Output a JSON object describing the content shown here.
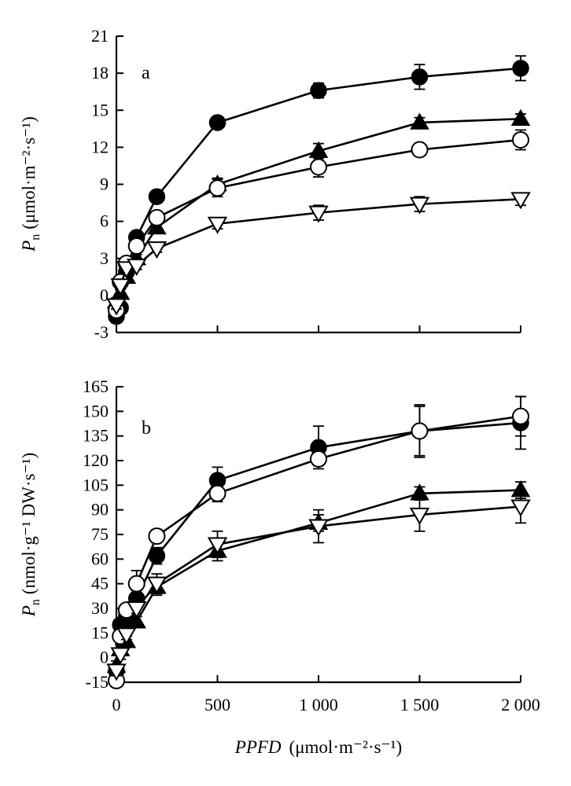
{
  "chart_data": [
    {
      "type": "line",
      "panel_label": "a",
      "ylabel_symbol": "P",
      "ylabel_subscript": "n",
      "ylabel_unit": "(μmol·m⁻²·s⁻¹)",
      "xlabel": "",
      "x": [
        0,
        20,
        50,
        100,
        200,
        500,
        1000,
        1500,
        2000
      ],
      "xlim": [
        0,
        2000
      ],
      "ylim": [
        -3,
        21
      ],
      "yticks": [
        -3,
        0,
        3,
        6,
        9,
        12,
        15,
        18,
        21
      ],
      "ytick_labels": [
        "-3",
        "0",
        "3",
        "6",
        "9",
        "12",
        "15",
        "18",
        "21"
      ],
      "xticks": [
        0,
        500,
        1000,
        1500,
        2000
      ],
      "grid": false,
      "series": [
        {
          "marker": "circle-filled",
          "values": [
            -1.7,
            -1.0,
            1.9,
            4.7,
            8.0,
            14.0,
            16.6,
            17.7,
            18.4
          ],
          "errors": [
            0.5,
            0.3,
            0.3,
            0.3,
            0.4,
            0.4,
            0.6,
            1.0,
            1.0
          ]
        },
        {
          "marker": "triangle-up-filled",
          "values": [
            -0.5,
            0.2,
            1.5,
            3.0,
            5.5,
            9.0,
            11.7,
            14.0,
            14.3
          ],
          "errors": [
            0.3,
            0.3,
            0.3,
            0.3,
            0.4,
            0.5,
            0.6,
            0.4,
            0.4
          ]
        },
        {
          "marker": "circle-open",
          "values": [
            -1.2,
            1.1,
            2.6,
            4.0,
            6.3,
            8.7,
            10.4,
            11.8,
            12.6
          ],
          "errors": [
            0.3,
            0.3,
            0.3,
            0.3,
            0.3,
            0.7,
            0.8,
            0.4,
            0.8
          ]
        },
        {
          "marker": "triangle-down-open",
          "values": [
            -0.8,
            0.8,
            2.2,
            2.4,
            3.8,
            5.8,
            6.7,
            7.4,
            7.8
          ],
          "errors": [
            0.3,
            0.3,
            0.3,
            0.3,
            0.3,
            0.4,
            0.6,
            0.6,
            0.5
          ]
        }
      ]
    },
    {
      "type": "line",
      "panel_label": "b",
      "ylabel_symbol": "P",
      "ylabel_subscript": "n",
      "ylabel_unit": "(nmol·g⁻¹ DW·s⁻¹)",
      "xlabel": "PPFD (μmol·m⁻²·s⁻¹)",
      "xlabel_italic_part": "PPFD",
      "xlabel_unit": "(μmol·m⁻²·s⁻¹)",
      "x": [
        0,
        20,
        50,
        100,
        200,
        500,
        1000,
        1500,
        2000
      ],
      "xlim": [
        0,
        2000
      ],
      "ylim": [
        -15,
        165
      ],
      "yticks": [
        -15,
        0,
        15,
        30,
        45,
        60,
        75,
        90,
        105,
        120,
        135,
        150,
        165
      ],
      "ytick_labels": [
        "-15",
        "0",
        "15",
        "30",
        "45",
        "60",
        "75",
        "90",
        "105",
        "120",
        "135",
        "150",
        "165"
      ],
      "xticks": [
        0,
        500,
        1000,
        1500,
        2000
      ],
      "xtick_labels": [
        "0",
        "500",
        "1 000",
        "1 500",
        "2 000"
      ],
      "grid": false,
      "series": [
        {
          "marker": "circle-filled",
          "values": [
            -8,
            20,
            25,
            36,
            62,
            108,
            128,
            138,
            143
          ],
          "errors": [
            3,
            3,
            3,
            5,
            5,
            8,
            13,
            15,
            16
          ]
        },
        {
          "marker": "triangle-up-filled",
          "values": [
            -5,
            5,
            10,
            22,
            43,
            65,
            82,
            100,
            102
          ],
          "errors": [
            3,
            3,
            3,
            3,
            5,
            6,
            5,
            4,
            5
          ]
        },
        {
          "marker": "circle-open",
          "values": [
            -14,
            13,
            29,
            45,
            74,
            100,
            121,
            138,
            147
          ],
          "errors": [
            3,
            3,
            3,
            8,
            4,
            5,
            4,
            16,
            12
          ]
        },
        {
          "marker": "triangle-down-open",
          "values": [
            -8,
            2,
            14,
            30,
            45,
            69,
            80,
            87,
            92
          ],
          "errors": [
            3,
            3,
            3,
            3,
            6,
            8,
            10,
            10,
            10
          ]
        }
      ]
    }
  ]
}
